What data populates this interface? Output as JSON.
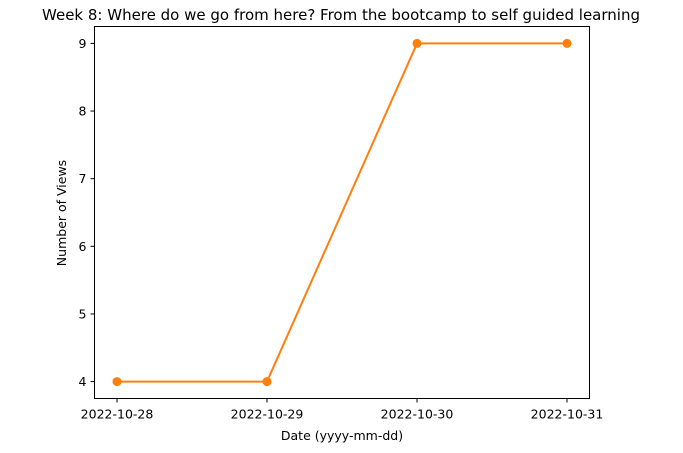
{
  "chart_data": {
    "type": "line",
    "title": "Week 8: Where do we go from here? From the bootcamp to self guided learning",
    "xlabel": "Date (yyyy-mm-dd)",
    "ylabel": "Number of Views",
    "categories": [
      "2022-10-28",
      "2022-10-29",
      "2022-10-30",
      "2022-10-31"
    ],
    "series": [
      {
        "values": [
          4,
          4,
          9,
          9
        ],
        "color": "#ff7f0e",
        "marker": "circle"
      }
    ],
    "yticks": [
      4,
      5,
      6,
      7,
      8,
      9
    ],
    "ylim": [
      3.75,
      9.25
    ],
    "grid": false,
    "legend": "none"
  }
}
